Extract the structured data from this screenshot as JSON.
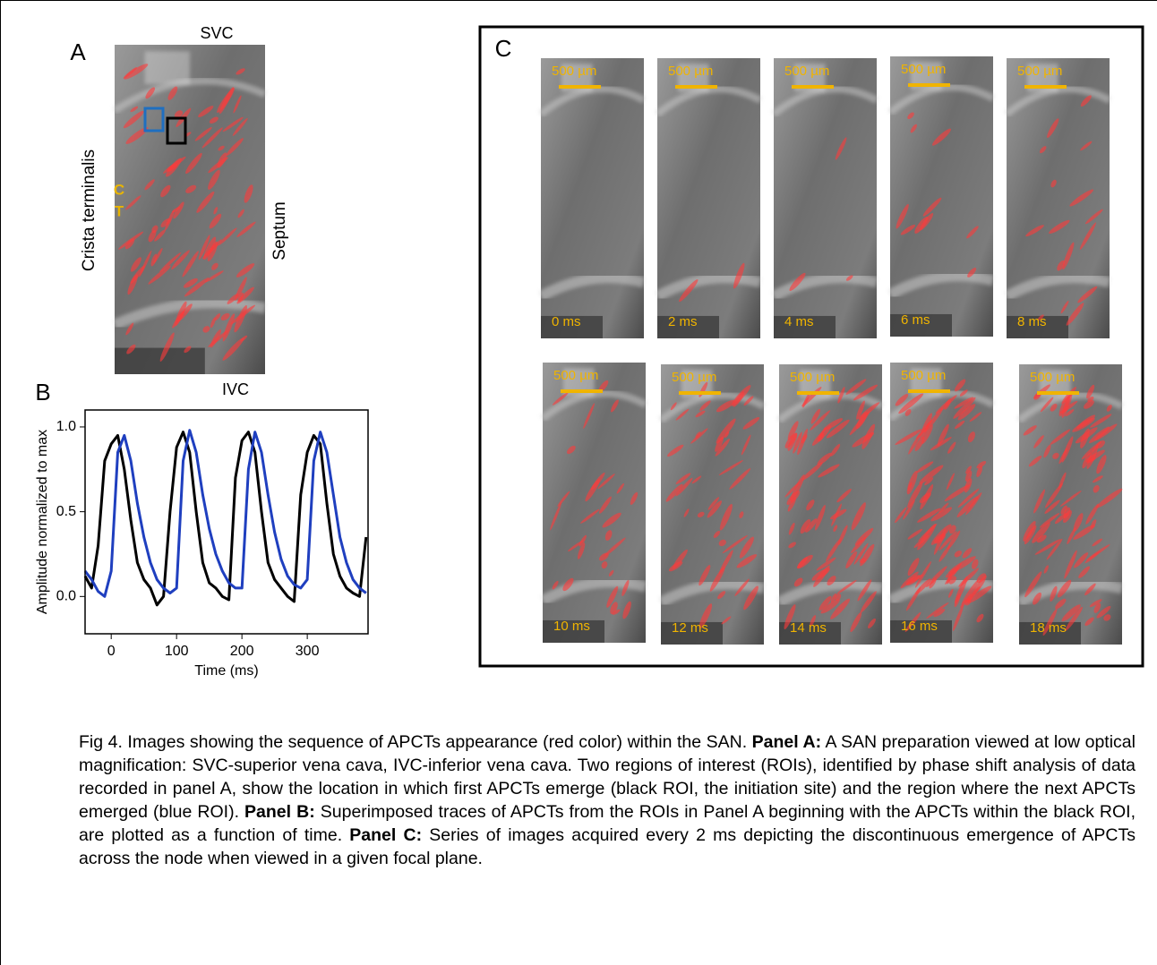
{
  "panel_a": {
    "letter": "A",
    "top_label": "SVC",
    "bottom_label": "IVC",
    "left_label": "Crista terminalis",
    "right_label": "Septum",
    "ct_labels": [
      "C",
      "T"
    ]
  },
  "panel_b": {
    "letter": "B"
  },
  "chart_data": {
    "type": "line",
    "x_label": "Time (ms)",
    "y_label": "Amplitude normalized to max",
    "x": [
      -40,
      -30,
      -20,
      -10,
      0,
      10,
      20,
      30,
      40,
      50,
      60,
      70,
      80,
      90,
      100,
      110,
      120,
      130,
      140,
      150,
      160,
      170,
      180,
      190,
      200,
      210,
      220,
      230,
      240,
      250,
      260,
      270,
      280,
      290,
      300,
      310,
      320,
      330,
      340,
      350,
      360,
      370,
      380,
      390
    ],
    "series": [
      {
        "color": "#000000",
        "values": [
          0.12,
          0.05,
          0.3,
          0.8,
          0.9,
          0.95,
          0.75,
          0.45,
          0.2,
          0.1,
          0.05,
          -0.05,
          0.0,
          0.5,
          0.88,
          0.97,
          0.85,
          0.5,
          0.2,
          0.08,
          0.05,
          0.0,
          -0.02,
          0.7,
          0.92,
          0.97,
          0.85,
          0.5,
          0.2,
          0.1,
          0.05,
          0.0,
          -0.03,
          0.6,
          0.85,
          0.95,
          0.9,
          0.55,
          0.25,
          0.12,
          0.05,
          0.02,
          0.0,
          0.35
        ]
      },
      {
        "color": "#1f3fbf",
        "values": [
          0.15,
          0.1,
          0.03,
          0.0,
          0.15,
          0.85,
          0.95,
          0.8,
          0.55,
          0.35,
          0.2,
          0.1,
          0.05,
          0.02,
          0.05,
          0.8,
          0.98,
          0.85,
          0.6,
          0.4,
          0.25,
          0.15,
          0.08,
          0.05,
          0.05,
          0.75,
          0.97,
          0.85,
          0.6,
          0.38,
          0.22,
          0.12,
          0.07,
          0.05,
          0.1,
          0.8,
          0.97,
          0.85,
          0.6,
          0.35,
          0.2,
          0.1,
          0.05,
          0.02
        ]
      }
    ],
    "xlim": [
      -40,
      393
    ],
    "ylim": [
      -0.22,
      1.1
    ],
    "xticks": [
      0,
      100,
      200,
      300
    ],
    "yticks": [
      {
        "value": 0,
        "label": "0.0"
      },
      {
        "value": 0.5,
        "label": "0.5"
      },
      {
        "value": 1,
        "label": "1.0"
      }
    ]
  },
  "panel_c": {
    "letter": "C",
    "frames": [
      {
        "scale": "500 µm",
        "time": "0 ms"
      },
      {
        "scale": "500 µm",
        "time": "2 ms"
      },
      {
        "scale": "500 µm",
        "time": "4 ms"
      },
      {
        "scale": "500 µm",
        "time": "6 ms"
      },
      {
        "scale": "500 µm",
        "time": "8 ms"
      },
      {
        "scale": "500 µm",
        "time": "10 ms"
      },
      {
        "scale": "500 µm",
        "time": "12 ms"
      },
      {
        "scale": "500 µm",
        "time": "14 ms"
      },
      {
        "scale": "500 µm",
        "time": "16 ms"
      },
      {
        "scale": "500 µm",
        "time": "18 ms"
      }
    ]
  },
  "caption": [
    {
      "text": "Fig 4. Images showing the sequence of APCTs appearance (red color) within the SAN. ",
      "bold": false
    },
    {
      "text": "Panel A:",
      "bold": true
    },
    {
      "text": " A SAN preparation viewed at low optical magnification: SVC-superior vena cava, IVC-inferior vena cava. Two regions of interest (ROIs), identified by phase shift analysis of data recorded in panel A, show the location in which first APCTs emerge (black ROI, the initiation site) and the region where the next APCTs emerged (blue ROI). ",
      "bold": false
    },
    {
      "text": "Panel B:",
      "bold": true
    },
    {
      "text": " Superimposed traces of APCTs from the ROIs in Panel A beginning with the APCTs within the black ROI, are plotted as a function of time. ",
      "bold": false
    },
    {
      "text": "Panel C:",
      "bold": true
    },
    {
      "text": " Series of images acquired every 2 ms depicting the discontinuous emergence of APCTs across the node when viewed in a given focal plane.",
      "bold": false
    }
  ]
}
